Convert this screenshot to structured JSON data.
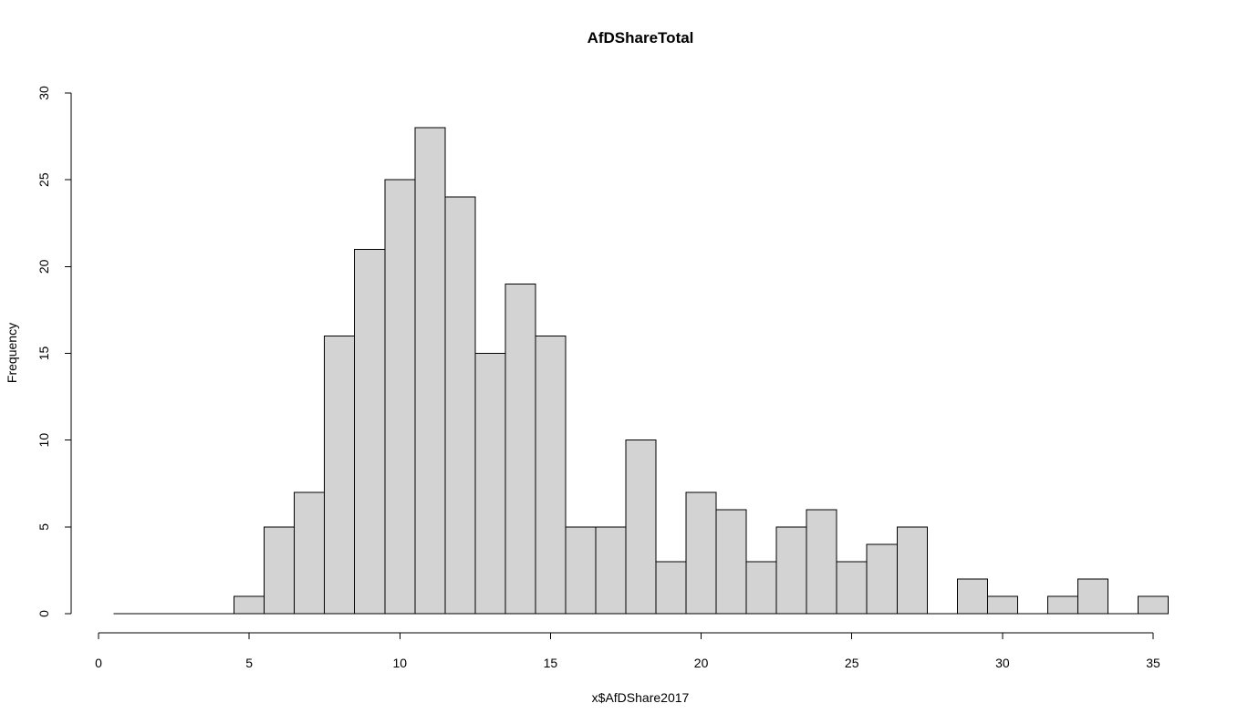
{
  "chart_data": {
    "type": "bar",
    "title": "AfDShareTotal",
    "xlabel": "x$AfDShare2017",
    "ylabel": "Frequency",
    "xlim": [
      0,
      35.5
    ],
    "ylim": [
      0,
      30
    ],
    "x_ticks": [
      0,
      5,
      10,
      15,
      20,
      25,
      30,
      35
    ],
    "y_ticks": [
      0,
      5,
      10,
      15,
      20,
      25,
      30
    ],
    "bin_width": 1,
    "bin_starts": [
      0.5,
      1.5,
      2.5,
      3.5,
      4.5,
      5.5,
      6.5,
      7.5,
      8.5,
      9.5,
      10.5,
      11.5,
      12.5,
      13.5,
      14.5,
      15.5,
      16.5,
      17.5,
      18.5,
      19.5,
      20.5,
      21.5,
      22.5,
      23.5,
      24.5,
      25.5,
      26.5,
      27.5,
      28.5,
      29.5,
      30.5,
      31.5,
      32.5,
      33.5,
      34.5
    ],
    "values": [
      0,
      0,
      0,
      0,
      1,
      5,
      7,
      16,
      21,
      25,
      28,
      24,
      15,
      19,
      16,
      5,
      5,
      10,
      3,
      7,
      6,
      3,
      5,
      6,
      3,
      4,
      5,
      0,
      2,
      1,
      0,
      1,
      2,
      0,
      1
    ],
    "bar_color": "#d3d3d3",
    "grid": false,
    "legend": "none"
  }
}
